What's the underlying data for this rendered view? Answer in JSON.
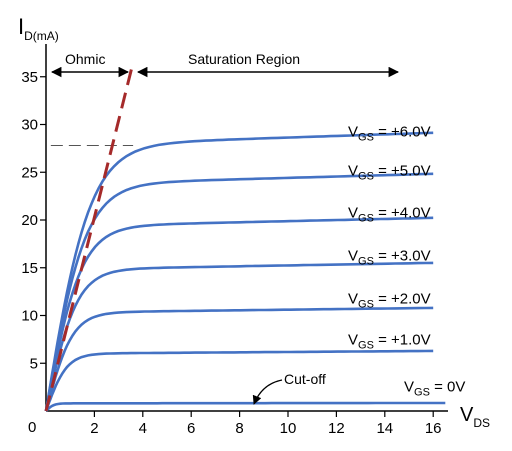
{
  "chart_data": {
    "type": "line",
    "title": "",
    "ylabel_main": "I",
    "ylabel_sub": "D(mA)",
    "xlabel_main": "V",
    "xlabel_sub": "DS",
    "xlim": [
      0,
      16.5
    ],
    "ylim": [
      0,
      37
    ],
    "xticks": [
      0,
      2,
      4,
      6,
      8,
      10,
      12,
      14,
      16
    ],
    "yticks": [
      0,
      5,
      10,
      15,
      20,
      25,
      30,
      35
    ],
    "grid": false,
    "legend": "inline labels at right of each curve",
    "series": [
      {
        "name_prefix": "V",
        "name_sub": "GS",
        "name_suffix": " = 0V",
        "saturation_current": 0.8,
        "knee_vds": 0.7,
        "x_end": 16.5
      },
      {
        "name_prefix": "V",
        "name_sub": "GS",
        "name_suffix": " = +1.0V",
        "saturation_current": 6.0,
        "knee_vds": 1.9,
        "x_end": 16.0
      },
      {
        "name_prefix": "V",
        "name_sub": "GS",
        "name_suffix": " = +2.0V",
        "saturation_current": 10.3,
        "knee_vds": 2.4,
        "x_end": 16.0
      },
      {
        "name_prefix": "V",
        "name_sub": "GS",
        "name_suffix": " = +3.0V",
        "saturation_current": 14.8,
        "knee_vds": 2.8,
        "x_end": 16.0
      },
      {
        "name_prefix": "V",
        "name_sub": "GS",
        "name_suffix": " = +4.0V",
        "saturation_current": 19.3,
        "knee_vds": 3.2,
        "x_end": 16.0
      },
      {
        "name_prefix": "V",
        "name_sub": "GS",
        "name_suffix": " = +5.0V",
        "saturation_current": 23.7,
        "knee_vds": 3.6,
        "x_end": 16.0
      },
      {
        "name_prefix": "V",
        "name_sub": "GS",
        "name_suffix": " = +6.0V",
        "saturation_current": 27.8,
        "knee_vds": 4.0,
        "x_end": 16.0
      }
    ],
    "boundary_line": {
      "from": [
        0,
        0
      ],
      "to": [
        3.6,
        36.5
      ],
      "style": "dashed",
      "color": "#a52a2a"
    },
    "reference_line": {
      "y": 27.8,
      "x_from": 0.2,
      "x_to": 3.6,
      "style": "dashed"
    },
    "annotations": {
      "ohmic": "Ohmic",
      "saturation": "Saturation Region",
      "cutoff": "Cut-off",
      "origin": "0"
    },
    "colors": {
      "curve": "#4472c4",
      "boundary": "#a52a2a",
      "axis": "#000000"
    }
  }
}
